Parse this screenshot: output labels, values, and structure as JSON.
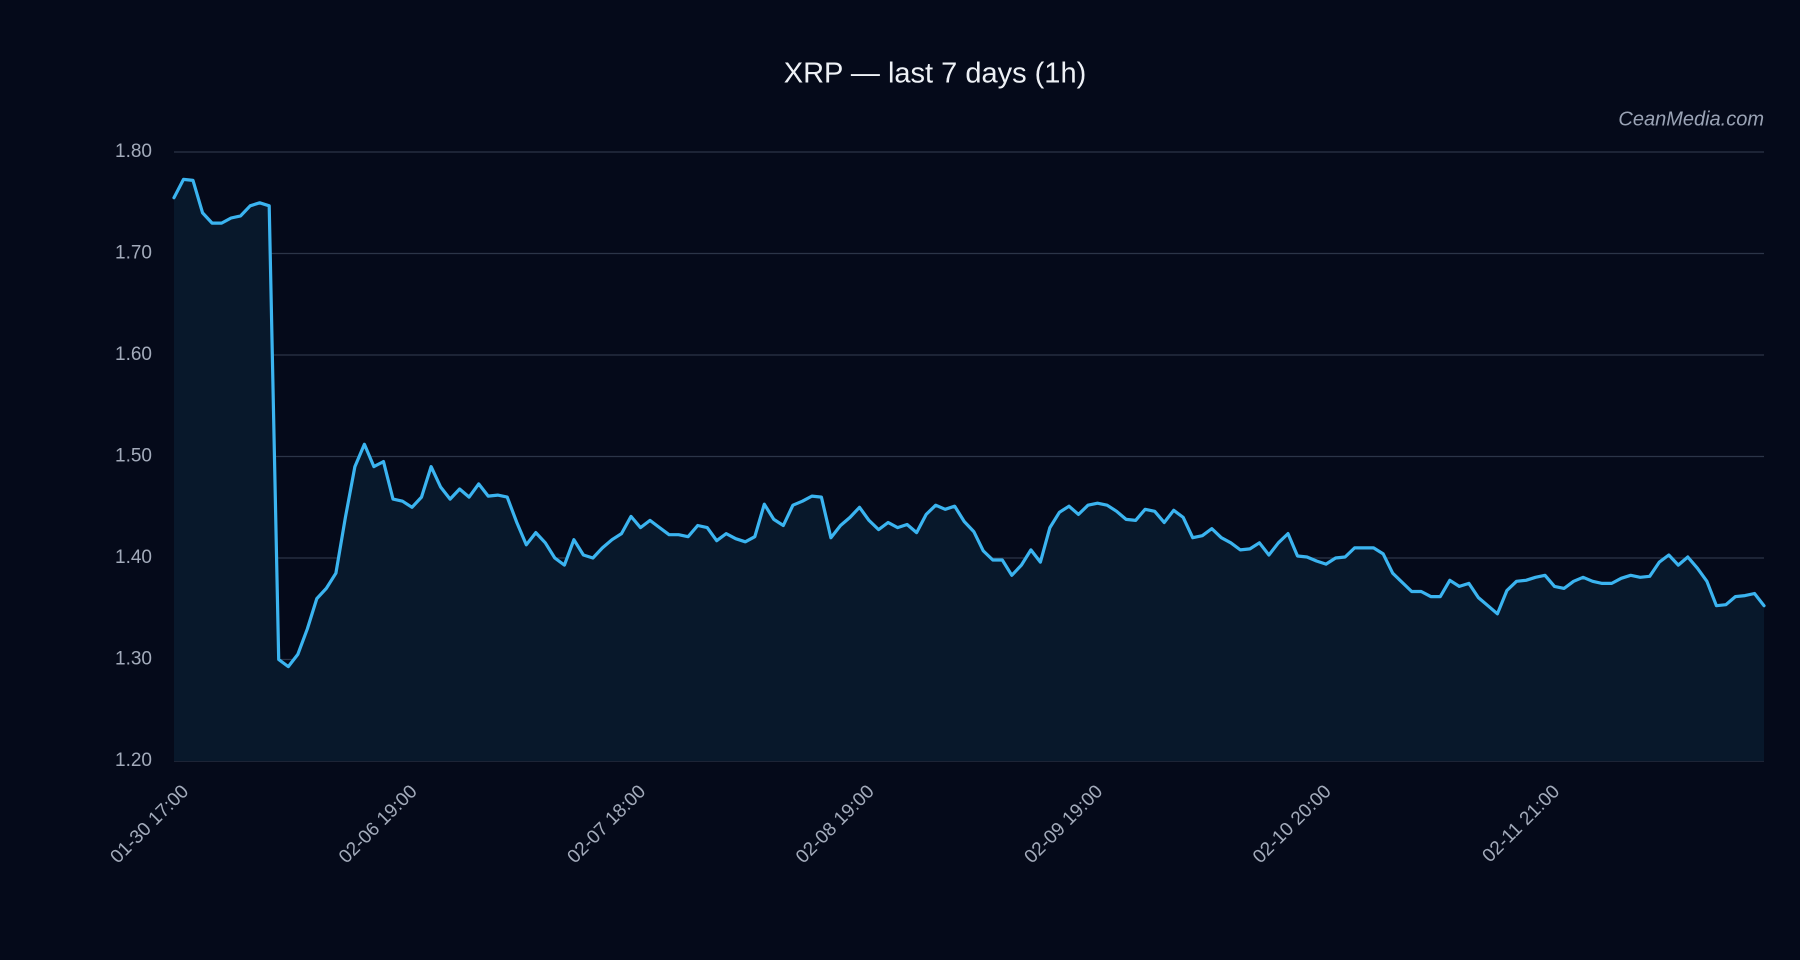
{
  "chart_data": {
    "type": "line",
    "title": "XRP — last 7 days (1h)",
    "watermark": "CeanMedia.com",
    "categories": [
      "01-30 17:00",
      null,
      null,
      null,
      null,
      null,
      null,
      null,
      null,
      null,
      null,
      null,
      null,
      null,
      null,
      null,
      null,
      null,
      null,
      null,
      null,
      null,
      null,
      null,
      "02-06 19:00",
      null,
      null,
      null,
      null,
      null,
      null,
      null,
      null,
      null,
      null,
      null,
      null,
      null,
      null,
      null,
      null,
      null,
      null,
      null,
      null,
      null,
      null,
      null,
      "02-07 18:00",
      null,
      null,
      null,
      null,
      null,
      null,
      null,
      null,
      null,
      null,
      null,
      null,
      null,
      null,
      null,
      null,
      null,
      null,
      null,
      null,
      null,
      null,
      null,
      "02-08 19:00",
      null,
      null,
      null,
      null,
      null,
      null,
      null,
      null,
      null,
      null,
      null,
      null,
      null,
      null,
      null,
      null,
      null,
      null,
      null,
      null,
      null,
      null,
      null,
      "02-09 19:00",
      null,
      null,
      null,
      null,
      null,
      null,
      null,
      null,
      null,
      null,
      null,
      null,
      null,
      null,
      null,
      null,
      null,
      null,
      null,
      null,
      null,
      null,
      null,
      "02-10 20:00",
      null,
      null,
      null,
      null,
      null,
      null,
      null,
      null,
      null,
      null,
      null,
      null,
      null,
      null,
      null,
      null,
      null,
      null,
      null,
      null,
      null,
      null,
      null,
      "02-11 21:00",
      null,
      null,
      null,
      null,
      null,
      null,
      null,
      null,
      null,
      null,
      null,
      null,
      null,
      null,
      null,
      null,
      null,
      null,
      null,
      null,
      null,
      null,
      null
    ],
    "values": [
      1.755,
      1.773,
      1.772,
      1.74,
      1.73,
      1.73,
      1.735,
      1.737,
      1.747,
      1.75,
      1.747,
      1.3,
      1.293,
      1.305,
      1.33,
      1.36,
      1.37,
      1.385,
      1.44,
      1.49,
      1.512,
      1.49,
      1.495,
      1.458,
      1.456,
      1.45,
      1.46,
      1.49,
      1.47,
      1.458,
      1.468,
      1.46,
      1.473,
      1.461,
      1.462,
      1.46,
      1.435,
      1.413,
      1.425,
      1.415,
      1.4,
      1.393,
      1.418,
      1.403,
      1.4,
      1.41,
      1.418,
      1.424,
      1.441,
      1.43,
      1.437,
      1.43,
      1.423,
      1.423,
      1.421,
      1.432,
      1.43,
      1.417,
      1.424,
      1.419,
      1.416,
      1.421,
      1.453,
      1.438,
      1.432,
      1.452,
      1.456,
      1.461,
      1.46,
      1.42,
      1.432,
      1.44,
      1.45,
      1.437,
      1.428,
      1.435,
      1.43,
      1.433,
      1.425,
      1.443,
      1.452,
      1.448,
      1.451,
      1.436,
      1.426,
      1.407,
      1.398,
      1.398,
      1.383,
      1.393,
      1.408,
      1.396,
      1.43,
      1.445,
      1.451,
      1.443,
      1.452,
      1.454,
      1.452,
      1.446,
      1.438,
      1.437,
      1.448,
      1.446,
      1.435,
      1.447,
      1.44,
      1.42,
      1.422,
      1.429,
      1.42,
      1.415,
      1.408,
      1.409,
      1.415,
      1.403,
      1.415,
      1.424,
      1.402,
      1.401,
      1.397,
      1.394,
      1.4,
      1.401,
      1.41,
      1.41,
      1.41,
      1.404,
      1.385,
      1.376,
      1.367,
      1.367,
      1.362,
      1.362,
      1.378,
      1.372,
      1.375,
      1.361,
      1.353,
      1.345,
      1.368,
      1.377,
      1.378,
      1.381,
      1.383,
      1.372,
      1.37,
      1.377,
      1.381,
      1.377,
      1.375,
      1.375,
      1.38,
      1.383,
      1.381,
      1.382,
      1.396,
      1.403,
      1.393,
      1.401,
      1.39,
      1.377,
      1.353,
      1.354,
      1.362,
      1.363,
      1.365,
      1.353
    ],
    "color": "#3bb4f0",
    "area_color": "#08182b",
    "ylim": [
      1.2,
      1.8
    ],
    "yticks": [
      {
        "value": 1.2,
        "label": "1.20"
      },
      {
        "value": 1.3,
        "label": "1.30"
      },
      {
        "value": 1.4,
        "label": "1.40"
      },
      {
        "value": 1.5,
        "label": "1.50"
      },
      {
        "value": 1.6,
        "label": "1.60"
      },
      {
        "value": 1.7,
        "label": "1.70"
      },
      {
        "value": 1.8,
        "label": "1.80"
      }
    ],
    "grid": true
  }
}
